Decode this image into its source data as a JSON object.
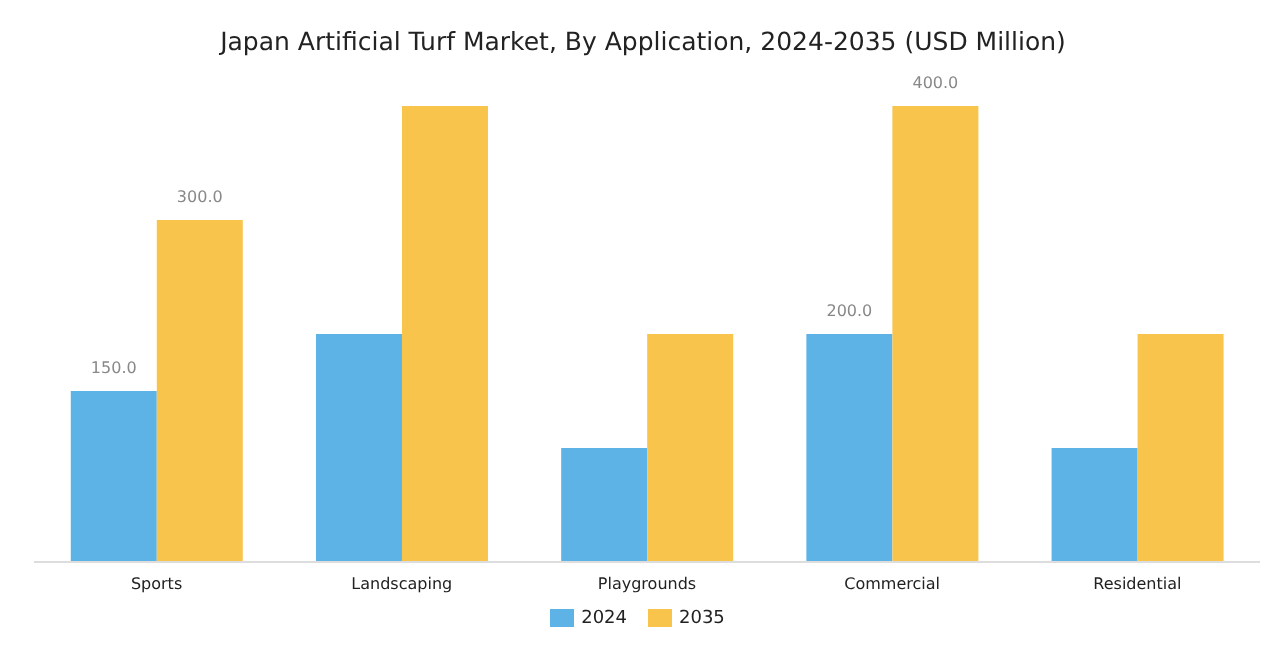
{
  "chart_data": {
    "type": "bar",
    "title": "Japan Artificial Turf Market, By Application, 2024-2035 (USD Million)",
    "categories": [
      "Sports",
      "Landscaping",
      "Playgrounds",
      "Commercial",
      "Residential"
    ],
    "series": [
      {
        "name": "2024",
        "color": "#5db3e6",
        "values": [
          150,
          200,
          100,
          200,
          100
        ],
        "value_labels": [
          "150.0",
          null,
          null,
          "200.0",
          null
        ]
      },
      {
        "name": "2035",
        "color": "#f8c44c",
        "values": [
          300,
          400,
          200,
          400,
          200
        ],
        "value_labels": [
          "300.0",
          null,
          null,
          "400.0",
          null
        ]
      }
    ],
    "legend": "bottom",
    "grid": false
  }
}
